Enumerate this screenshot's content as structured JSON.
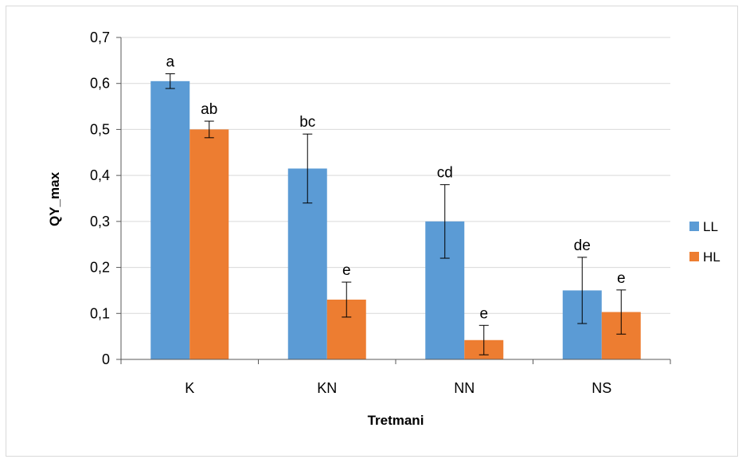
{
  "chart_data": {
    "type": "bar",
    "title": "",
    "xlabel": "Tretmani",
    "ylabel": "QY_max",
    "categories": [
      "K",
      "KN",
      "NN",
      "NS"
    ],
    "ylim": [
      0,
      0.7
    ],
    "yticks": [
      "0",
      "0,1",
      "0,2",
      "0,3",
      "0,4",
      "0,5",
      "0,6",
      "0,7"
    ],
    "grid": "horizontal",
    "legend_position": "right",
    "series": [
      {
        "name": "LL",
        "color": "#5b9bd5",
        "values": [
          0.605,
          0.415,
          0.3,
          0.15
        ],
        "errors": [
          0.016,
          0.075,
          0.08,
          0.072
        ],
        "labels": [
          "a",
          "bc",
          "cd",
          "de"
        ]
      },
      {
        "name": "HL",
        "color": "#ed7d31",
        "values": [
          0.5,
          0.13,
          0.042,
          0.103
        ],
        "errors": [
          0.018,
          0.038,
          0.032,
          0.048
        ],
        "labels": [
          "ab",
          "e",
          "e",
          "e"
        ]
      }
    ]
  }
}
